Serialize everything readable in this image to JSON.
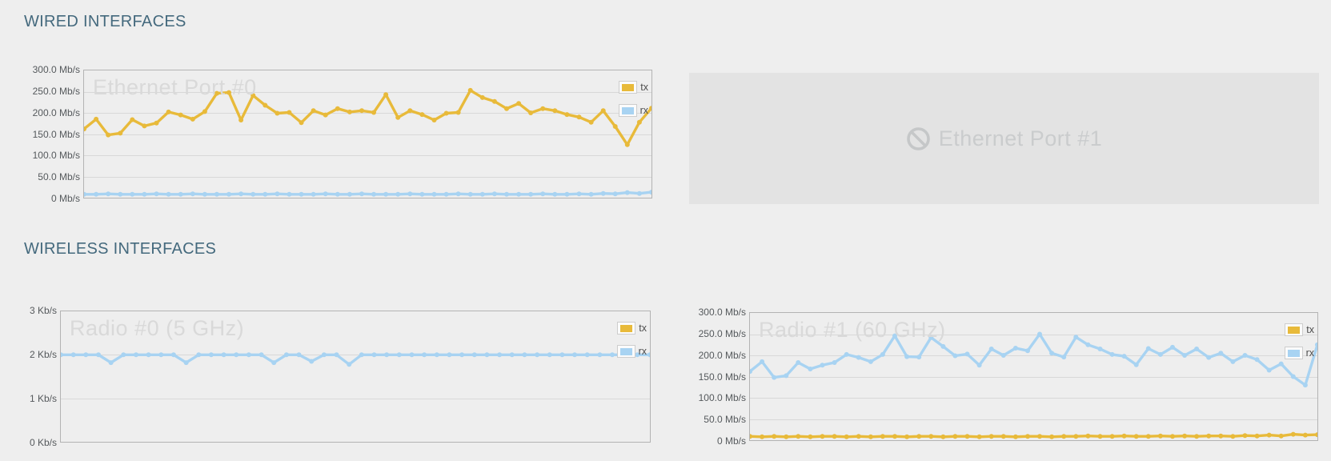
{
  "page": {
    "background": "#eeeeee"
  },
  "colors": {
    "heading": "#44697d",
    "tx": "#e8ba3a",
    "rx": "#a8d3f2",
    "watermark": "#d9d9d9",
    "grid": "#d8d8d8",
    "plot_border": "#b3b3b3",
    "axis_label": "#55595c",
    "disabled_bg": "#e3e3e3",
    "disabled_fg": "#cacccd"
  },
  "sections": [
    {
      "title": "WIRED INTERFACES"
    },
    {
      "title": "WIRELESS INTERFACES"
    }
  ],
  "disabled_panel": {
    "label": "Ethernet Port #1",
    "icon": "prohibited-icon"
  },
  "chart_data": [
    {
      "type": "line",
      "title": "Ethernet Port #0",
      "unit": "Mb/s",
      "ylim": [
        0,
        300
      ],
      "yticks": [
        "300.0 Mb/s",
        "250.0 Mb/s",
        "200.0 Mb/s",
        "150.0 Mb/s",
        "100.0 Mb/s",
        "50.0 Mb/s",
        "0 Mb/s"
      ],
      "grid": true,
      "legend_position": "top-right",
      "series": [
        {
          "name": "tx",
          "color_key": "tx",
          "values": [
            162,
            185,
            148,
            152,
            184,
            169,
            176,
            202,
            195,
            185,
            203,
            246,
            248,
            183,
            241,
            218,
            199,
            201,
            177,
            205,
            195,
            210,
            202,
            205,
            201,
            243,
            189,
            205,
            196,
            183,
            199,
            201,
            253,
            236,
            227,
            210,
            222,
            200,
            210,
            205,
            196,
            190,
            178,
            205,
            168,
            125,
            178,
            211
          ]
        },
        {
          "name": "rx",
          "color_key": "rx",
          "values": [
            8,
            8,
            9,
            8,
            8,
            8,
            9,
            8,
            8,
            9,
            8,
            8,
            8,
            9,
            8,
            8,
            9,
            8,
            8,
            8,
            9,
            8,
            8,
            9,
            8,
            8,
            8,
            9,
            8,
            8,
            8,
            9,
            8,
            8,
            9,
            8,
            8,
            8,
            9,
            8,
            8,
            9,
            8,
            10,
            9,
            12,
            10,
            13
          ]
        }
      ]
    },
    {
      "type": "line",
      "title": "Radio #0 (5 GHz)",
      "unit": "Kb/s",
      "ylim": [
        0,
        3
      ],
      "yticks": [
        "3 Kb/s",
        "2 Kb/s",
        "1 Kb/s",
        "0 Kb/s"
      ],
      "grid": true,
      "legend_position": "top-right",
      "series": [
        {
          "name": "tx",
          "color_key": "tx",
          "values": []
        },
        {
          "name": "rx",
          "color_key": "rx",
          "values": [
            2,
            2,
            2,
            2,
            1.82,
            2,
            2,
            2,
            2,
            2,
            1.82,
            2,
            2,
            2,
            2,
            2,
            2,
            1.82,
            2,
            2,
            1.85,
            2,
            2,
            1.78,
            2,
            2,
            2,
            2,
            2,
            2,
            2,
            2,
            2,
            2,
            2,
            2,
            2,
            2,
            2,
            2,
            2,
            2,
            2,
            2,
            2,
            2,
            2,
            2
          ]
        }
      ]
    },
    {
      "type": "line",
      "title": "Radio #1 (60 GHz)",
      "unit": "Mb/s",
      "ylim": [
        0,
        300
      ],
      "yticks": [
        "300.0 Mb/s",
        "250.0 Mb/s",
        "200.0 Mb/s",
        "150.0 Mb/s",
        "100.0 Mb/s",
        "50.0 Mb/s",
        "0 Mb/s"
      ],
      "grid": true,
      "legend_position": "top-right",
      "series": [
        {
          "name": "tx",
          "color_key": "tx",
          "values": [
            9,
            8,
            9,
            8,
            9,
            8,
            9,
            9,
            8,
            9,
            8,
            9,
            9,
            8,
            9,
            9,
            8,
            9,
            9,
            8,
            9,
            9,
            8,
            9,
            9,
            8,
            9,
            9,
            10,
            9,
            9,
            10,
            9,
            9,
            10,
            9,
            10,
            9,
            10,
            10,
            9,
            11,
            10,
            12,
            10,
            14,
            12,
            13
          ]
        },
        {
          "name": "rx",
          "color_key": "rx",
          "values": [
            162,
            185,
            148,
            152,
            183,
            168,
            177,
            183,
            202,
            195,
            185,
            202,
            246,
            197,
            196,
            242,
            221,
            199,
            203,
            177,
            215,
            200,
            217,
            211,
            250,
            205,
            196,
            243,
            225,
            215,
            202,
            198,
            178,
            216,
            202,
            219,
            200,
            215,
            195,
            205,
            185,
            200,
            190,
            165,
            180,
            150,
            130,
            225
          ]
        }
      ]
    }
  ]
}
